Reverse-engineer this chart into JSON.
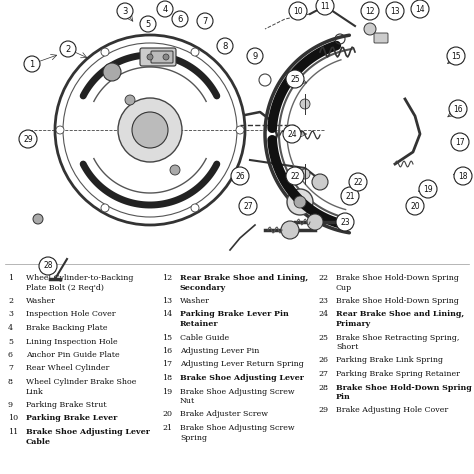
{
  "bg_color": "#f0ece4",
  "diagram_bg": "#ffffff",
  "text_color": "#111111",
  "parts": [
    {
      "num": 1,
      "label": "Wheel Cylinder-to-Backing\nPlate Bolt (2 Req'd)",
      "bold": false
    },
    {
      "num": 2,
      "label": "Washer",
      "bold": false
    },
    {
      "num": 3,
      "label": "Inspection Hole Cover",
      "bold": false
    },
    {
      "num": 4,
      "label": "Brake Backing Plate",
      "bold": false
    },
    {
      "num": 5,
      "label": "Lining Inspection Hole",
      "bold": false
    },
    {
      "num": 6,
      "label": "Anchor Pin Guide Plate",
      "bold": false
    },
    {
      "num": 7,
      "label": "Rear Wheel Cylinder",
      "bold": false
    },
    {
      "num": 8,
      "label": "Wheel Cylinder Brake Shoe\nLink",
      "bold": false
    },
    {
      "num": 9,
      "label": "Parking Brake Strut",
      "bold": false
    },
    {
      "num": 10,
      "label": "Parking Brake Lever",
      "bold": true
    },
    {
      "num": 11,
      "label": "Brake Shoe Adjusting Lever\nCable",
      "bold": true
    },
    {
      "num": 12,
      "label": "Rear Brake Shoe and Lining,\nSecondary",
      "bold": true
    },
    {
      "num": 13,
      "label": "Washer",
      "bold": false
    },
    {
      "num": 14,
      "label": "Parking Brake Lever Pin\nRetainer",
      "bold": true
    },
    {
      "num": 15,
      "label": "Cable Guide",
      "bold": false
    },
    {
      "num": 16,
      "label": "Adjusting Lever Pin",
      "bold": false
    },
    {
      "num": 17,
      "label": "Adjusting Lever Return Spring",
      "bold": false
    },
    {
      "num": 18,
      "label": "Brake Shoe Adjusting Lever",
      "bold": true
    },
    {
      "num": 19,
      "label": "Brake Shoe Adjusting Screw\nNut",
      "bold": false
    },
    {
      "num": 20,
      "label": "Brake Adjuster Screw",
      "bold": false
    },
    {
      "num": 21,
      "label": "Brake Shoe Adjusting Screw\nSpring",
      "bold": false
    },
    {
      "num": 22,
      "label": "Brake Shoe Hold-Down Spring\nCup",
      "bold": false
    },
    {
      "num": 23,
      "label": "Brake Shoe Hold-Down Spring",
      "bold": false
    },
    {
      "num": 24,
      "label": "Rear Brake Shoe and Lining,\nPrimary",
      "bold": true
    },
    {
      "num": 25,
      "label": "Brake Shoe Retracting Spring,\nShort",
      "bold": false
    },
    {
      "num": 26,
      "label": "Parking Brake Link Spring",
      "bold": false
    },
    {
      "num": 27,
      "label": "Parking Brake Spring Retainer",
      "bold": false
    },
    {
      "num": 28,
      "label": "Brake Shoe Hold-Down Spring\nPin",
      "bold": true
    },
    {
      "num": 29,
      "label": "Brake Adjusting Hole Cover",
      "bold": false
    }
  ],
  "col1_nums": [
    1,
    2,
    3,
    4,
    5,
    6,
    7,
    8,
    9,
    10,
    11
  ],
  "col2_nums": [
    12,
    13,
    14,
    15,
    16,
    17,
    18,
    19,
    20,
    21
  ],
  "col3_nums": [
    22,
    23,
    24,
    25,
    26,
    27,
    28,
    29
  ]
}
